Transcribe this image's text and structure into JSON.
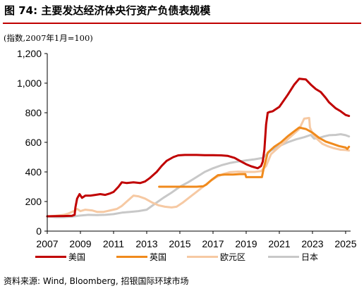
{
  "header": {
    "title": "图 74: 主要发达经济体央行资产负债表规模",
    "unit_note": "(指数,2007年1月=100)"
  },
  "footer": {
    "source": "资料来源: Wind, Bloomberg, 招银国际环球市场"
  },
  "colors": {
    "title_rule": "#c00000",
    "us": "#c00000",
    "uk": "#f08a1c",
    "eu": "#f6c9a3",
    "jp": "#c8c8c8"
  },
  "chart_data": {
    "type": "line",
    "title": "",
    "xlabel": "",
    "ylabel": "",
    "xlim": [
      2007,
      2025.3
    ],
    "ylim": [
      0,
      1200
    ],
    "x_ticks": [
      2007,
      2009,
      2011,
      2013,
      2015,
      2017,
      2019,
      2021,
      2023,
      2025
    ],
    "x_tick_labels": [
      "2007",
      "2009",
      "2011",
      "2013",
      "2015",
      "2017",
      "2019",
      "2021",
      "2023",
      "2025"
    ],
    "y_ticks": [
      0,
      200,
      400,
      600,
      800,
      1000,
      1200
    ],
    "y_tick_labels": [
      "0",
      "200",
      "400",
      "600",
      "800",
      "1,000",
      "1,200"
    ],
    "grid": false,
    "legend_position": "bottom",
    "series": [
      {
        "name": "美国",
        "color": "#c00000",
        "points": [
          [
            2007.0,
            100
          ],
          [
            2007.5,
            101
          ],
          [
            2008.0,
            102
          ],
          [
            2008.5,
            104
          ],
          [
            2008.65,
            110
          ],
          [
            2008.7,
            160
          ],
          [
            2008.8,
            220
          ],
          [
            2008.95,
            250
          ],
          [
            2009.1,
            225
          ],
          [
            2009.3,
            240
          ],
          [
            2009.6,
            240
          ],
          [
            2009.9,
            245
          ],
          [
            2010.2,
            250
          ],
          [
            2010.5,
            245
          ],
          [
            2010.8,
            255
          ],
          [
            2011.0,
            265
          ],
          [
            2011.3,
            300
          ],
          [
            2011.5,
            330
          ],
          [
            2011.8,
            325
          ],
          [
            2012.2,
            330
          ],
          [
            2012.6,
            325
          ],
          [
            2012.9,
            335
          ],
          [
            2013.2,
            360
          ],
          [
            2013.6,
            400
          ],
          [
            2013.9,
            440
          ],
          [
            2014.2,
            475
          ],
          [
            2014.6,
            500
          ],
          [
            2014.9,
            512
          ],
          [
            2015.3,
            515
          ],
          [
            2016.0,
            515
          ],
          [
            2016.5,
            513
          ],
          [
            2017.0,
            513
          ],
          [
            2017.5,
            512
          ],
          [
            2017.9,
            508
          ],
          [
            2018.3,
            495
          ],
          [
            2018.7,
            470
          ],
          [
            2019.0,
            452
          ],
          [
            2019.3,
            438
          ],
          [
            2019.7,
            425
          ],
          [
            2019.9,
            440
          ],
          [
            2020.0,
            470
          ],
          [
            2020.1,
            550
          ],
          [
            2020.2,
            720
          ],
          [
            2020.3,
            800
          ],
          [
            2020.4,
            805
          ],
          [
            2020.6,
            810
          ],
          [
            2021.0,
            840
          ],
          [
            2021.5,
            920
          ],
          [
            2021.9,
            990
          ],
          [
            2022.2,
            1030
          ],
          [
            2022.6,
            1025
          ],
          [
            2022.9,
            990
          ],
          [
            2023.2,
            960
          ],
          [
            2023.5,
            940
          ],
          [
            2023.8,
            900
          ],
          [
            2024.0,
            870
          ],
          [
            2024.4,
            830
          ],
          [
            2024.7,
            810
          ],
          [
            2025.0,
            785
          ],
          [
            2025.2,
            778
          ]
        ]
      },
      {
        "name": "英国",
        "color": "#f08a1c",
        "points": [
          [
            2013.75,
            300
          ],
          [
            2015.0,
            300
          ],
          [
            2016.0,
            300
          ],
          [
            2016.4,
            303
          ],
          [
            2016.6,
            315
          ],
          [
            2016.9,
            345
          ],
          [
            2017.3,
            378
          ],
          [
            2017.7,
            382
          ],
          [
            2018.2,
            382
          ],
          [
            2018.6,
            385
          ],
          [
            2018.95,
            385
          ],
          [
            2019.0,
            365
          ],
          [
            2019.3,
            365
          ],
          [
            2019.6,
            365
          ],
          [
            2019.95,
            365
          ],
          [
            2020.05,
            420
          ],
          [
            2020.3,
            530
          ],
          [
            2020.7,
            570
          ],
          [
            2021.1,
            600
          ],
          [
            2021.5,
            640
          ],
          [
            2021.9,
            675
          ],
          [
            2022.2,
            700
          ],
          [
            2022.6,
            690
          ],
          [
            2023.0,
            665
          ],
          [
            2023.4,
            630
          ],
          [
            2023.8,
            605
          ],
          [
            2024.2,
            590
          ],
          [
            2024.6,
            575
          ],
          [
            2025.0,
            565
          ],
          [
            2025.1,
            555
          ],
          [
            2025.2,
            570
          ]
        ]
      },
      {
        "name": "欧元区",
        "color": "#f6c9a3",
        "points": [
          [
            2007.0,
            100
          ],
          [
            2007.5,
            104
          ],
          [
            2008.0,
            110
          ],
          [
            2008.3,
            120
          ],
          [
            2008.6,
            135
          ],
          [
            2008.8,
            150
          ],
          [
            2009.0,
            135
          ],
          [
            2009.3,
            145
          ],
          [
            2009.7,
            140
          ],
          [
            2010.0,
            130
          ],
          [
            2010.4,
            130
          ],
          [
            2010.8,
            140
          ],
          [
            2011.2,
            150
          ],
          [
            2011.5,
            170
          ],
          [
            2011.9,
            210
          ],
          [
            2012.2,
            240
          ],
          [
            2012.5,
            235
          ],
          [
            2012.9,
            220
          ],
          [
            2013.3,
            195
          ],
          [
            2013.7,
            175
          ],
          [
            2014.1,
            165
          ],
          [
            2014.5,
            160
          ],
          [
            2014.8,
            165
          ],
          [
            2015.2,
            195
          ],
          [
            2015.6,
            230
          ],
          [
            2016.0,
            265
          ],
          [
            2016.4,
            300
          ],
          [
            2016.8,
            335
          ],
          [
            2017.2,
            365
          ],
          [
            2017.6,
            385
          ],
          [
            2018.0,
            398
          ],
          [
            2018.5,
            402
          ],
          [
            2019.0,
            400
          ],
          [
            2019.5,
            400
          ],
          [
            2019.9,
            405
          ],
          [
            2020.2,
            440
          ],
          [
            2020.5,
            520
          ],
          [
            2020.9,
            560
          ],
          [
            2021.3,
            600
          ],
          [
            2021.8,
            650
          ],
          [
            2022.2,
            690
          ],
          [
            2022.5,
            760
          ],
          [
            2022.8,
            765
          ],
          [
            2022.85,
            700
          ],
          [
            2023.0,
            660
          ],
          [
            2023.3,
            620
          ],
          [
            2023.6,
            590
          ],
          [
            2023.9,
            575
          ],
          [
            2024.3,
            560
          ],
          [
            2024.7,
            550
          ],
          [
            2025.0,
            548
          ],
          [
            2025.2,
            545
          ]
        ]
      },
      {
        "name": "日本",
        "color": "#c8c8c8",
        "points": [
          [
            2007.0,
            100
          ],
          [
            2007.5,
            95
          ],
          [
            2008.0,
            95
          ],
          [
            2008.5,
            98
          ],
          [
            2009.0,
            105
          ],
          [
            2009.5,
            110
          ],
          [
            2010.0,
            108
          ],
          [
            2010.5,
            110
          ],
          [
            2011.0,
            115
          ],
          [
            2011.5,
            125
          ],
          [
            2012.0,
            130
          ],
          [
            2012.5,
            135
          ],
          [
            2013.0,
            145
          ],
          [
            2013.5,
            185
          ],
          [
            2014.0,
            225
          ],
          [
            2014.5,
            260
          ],
          [
            2015.0,
            300
          ],
          [
            2015.5,
            330
          ],
          [
            2016.0,
            365
          ],
          [
            2016.5,
            400
          ],
          [
            2017.0,
            425
          ],
          [
            2017.5,
            445
          ],
          [
            2018.0,
            460
          ],
          [
            2018.5,
            470
          ],
          [
            2019.0,
            478
          ],
          [
            2019.5,
            485
          ],
          [
            2020.0,
            495
          ],
          [
            2020.5,
            545
          ],
          [
            2021.0,
            575
          ],
          [
            2021.5,
            600
          ],
          [
            2022.0,
            620
          ],
          [
            2022.5,
            635
          ],
          [
            2022.9,
            650
          ],
          [
            2023.1,
            625
          ],
          [
            2023.4,
            630
          ],
          [
            2023.7,
            640
          ],
          [
            2024.0,
            648
          ],
          [
            2024.4,
            650
          ],
          [
            2024.7,
            655
          ],
          [
            2025.0,
            648
          ],
          [
            2025.2,
            640
          ]
        ]
      }
    ]
  }
}
